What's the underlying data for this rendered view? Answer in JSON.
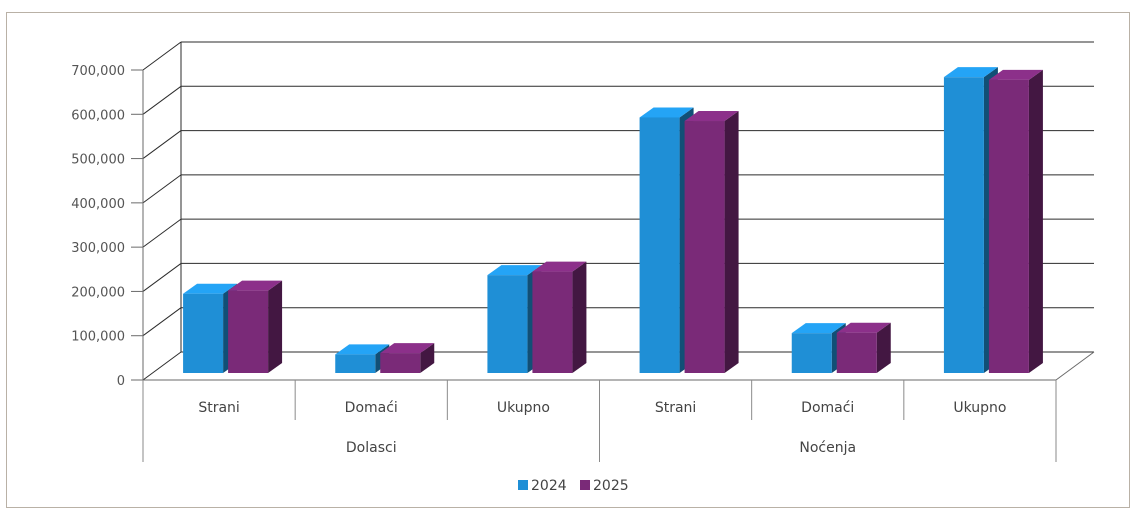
{
  "chart_data": {
    "type": "bar",
    "categories": [
      "Strani",
      "Domaći",
      "Ukupno",
      "Strani",
      "Domaći",
      "Ukupno"
    ],
    "groups": [
      {
        "label": "Dolasci",
        "categories": [
          "Strani",
          "Domaći",
          "Ukupno"
        ]
      },
      {
        "label": "Noćenja",
        "categories": [
          "Strani",
          "Domaći",
          "Ukupno"
        ]
      }
    ],
    "series": [
      {
        "name": "2024",
        "color": "#1f8fd6",
        "values": [
          179000,
          42000,
          221000,
          577000,
          90000,
          668000
        ]
      },
      {
        "name": "2025",
        "color": "#7a2a78",
        "values": [
          186000,
          45000,
          229000,
          569000,
          91000,
          662000
        ]
      }
    ],
    "yticks": [
      "0",
      "100,000",
      "200,000",
      "300,000",
      "400,000",
      "500,000",
      "600,000",
      "700,000"
    ],
    "ylim": [
      0,
      700000
    ],
    "grid": true,
    "legend_position": "bottom",
    "style": "3d-clustered-column"
  }
}
